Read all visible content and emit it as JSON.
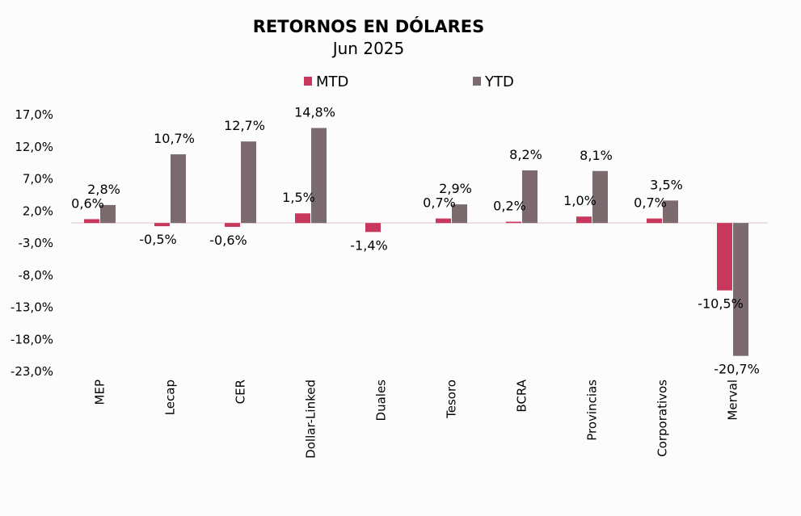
{
  "chart_data": {
    "type": "bar",
    "title": "RETORNOS EN DÓLARES",
    "subtitle": "Jun 2025",
    "xlabel": "",
    "ylabel": "",
    "ylim": [
      -23,
      17
    ],
    "yticks": [
      17,
      12,
      7,
      2,
      -3,
      -8,
      -13,
      -18,
      -23
    ],
    "ytick_labels": [
      "17,0%",
      "12,0%",
      "7,0%",
      "2,0%",
      "-3,0%",
      "-8,0%",
      "-13,0%",
      "-18,0%",
      "-23,0%"
    ],
    "categories": [
      "MEP",
      "Lecap",
      "CER",
      "Dollar-Linked",
      "Duales",
      "Tesoro",
      "BCRA",
      "Provincias",
      "Corporativos",
      "Merval"
    ],
    "series": [
      {
        "name": "MTD",
        "color": "#c8385c",
        "values": [
          0.6,
          -0.5,
          -0.6,
          1.5,
          -1.4,
          0.7,
          0.2,
          1.0,
          0.7,
          -10.5
        ],
        "labels": [
          "0,6%",
          "-0,5%",
          "-0,6%",
          "1,5%",
          "-1,4%",
          "0,7%",
          "0,2%",
          "1,0%",
          "0,7%",
          "-10,5%"
        ]
      },
      {
        "name": "YTD",
        "color": "#7c6b6e",
        "values": [
          2.8,
          10.7,
          12.7,
          14.8,
          null,
          2.9,
          8.2,
          8.1,
          3.5,
          -20.7
        ],
        "labels": [
          "2,8%",
          "10,7%",
          "12,7%",
          "14,8%",
          "",
          "2,9%",
          "8,2%",
          "8,1%",
          "3,5%",
          "-20,7%"
        ]
      }
    ],
    "legend_position": "top",
    "grid": false
  }
}
